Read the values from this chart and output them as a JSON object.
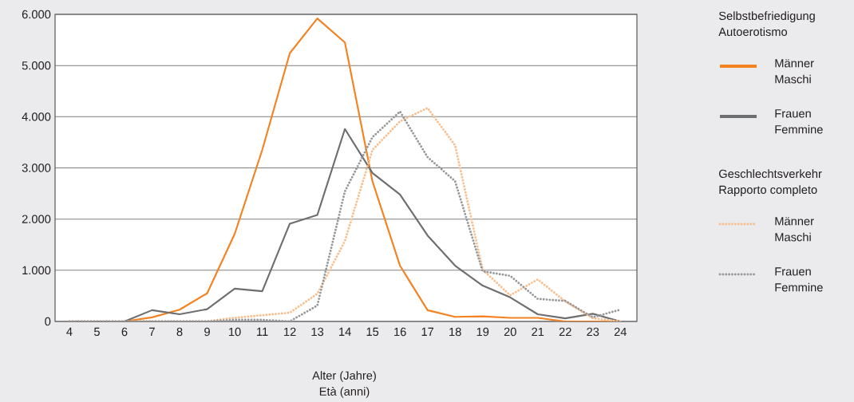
{
  "chart_data": {
    "type": "line",
    "xlabel": "Alter (Jahre) Età (anni)",
    "categories": [
      "4",
      "5",
      "6",
      "7",
      "8",
      "9",
      "10",
      "11",
      "12",
      "13",
      "14",
      "15",
      "16",
      "17",
      "18",
      "19",
      "20",
      "21",
      "22",
      "23",
      "24"
    ],
    "ylim": [
      0,
      6000
    ],
    "yticks": [
      0,
      {
        "value": 1000,
        "label": "1.000"
      },
      {
        "value": 2000,
        "label": "2.000"
      },
      {
        "value": 3000,
        "label": "3.000"
      },
      {
        "value": 4000,
        "label": "4.000"
      },
      {
        "value": 5000,
        "label": "5.000"
      },
      {
        "value": 6000,
        "label": "6.000"
      }
    ],
    "grid": "y",
    "legend": "right",
    "line_style": "solid",
    "annotations": [
      "Selbstbefriedigung Autoerotismo",
      "Geschlechtsverkehr Rapporto completo"
    ],
    "series": [
      {
        "name": "Männer Maschi",
        "color": "#f58220",
        "values": [
          0,
          0,
          0,
          80,
          230,
          550,
          1710,
          3350,
          5240,
          5920,
          5450,
          2740,
          1090,
          220,
          90,
          100,
          70,
          70,
          0,
          0,
          0
        ]
      },
      {
        "name": "Frauen Femmine",
        "color": "#6d6e70",
        "values": [
          0,
          0,
          0,
          220,
          140,
          240,
          640,
          590,
          1910,
          2080,
          3760,
          2900,
          2480,
          1680,
          1090,
          700,
          470,
          140,
          60,
          150,
          0
        ]
      },
      {
        "name": "Männer Maschi",
        "color": "#f9be8c",
        "line_style": "dotted",
        "values": [
          0,
          0,
          0,
          0,
          0,
          0,
          70,
          120,
          170,
          540,
          1570,
          3350,
          3910,
          4170,
          3440,
          1010,
          510,
          820,
          390,
          60,
          0
        ]
      },
      {
        "name": "Frauen Femmine",
        "color": "#97989a",
        "line_style": "dotted",
        "values": [
          0,
          0,
          0,
          0,
          0,
          0,
          30,
          30,
          0,
          310,
          2540,
          3600,
          4100,
          3210,
          2740,
          980,
          890,
          440,
          400,
          80,
          230
        ]
      }
    ]
  }
}
